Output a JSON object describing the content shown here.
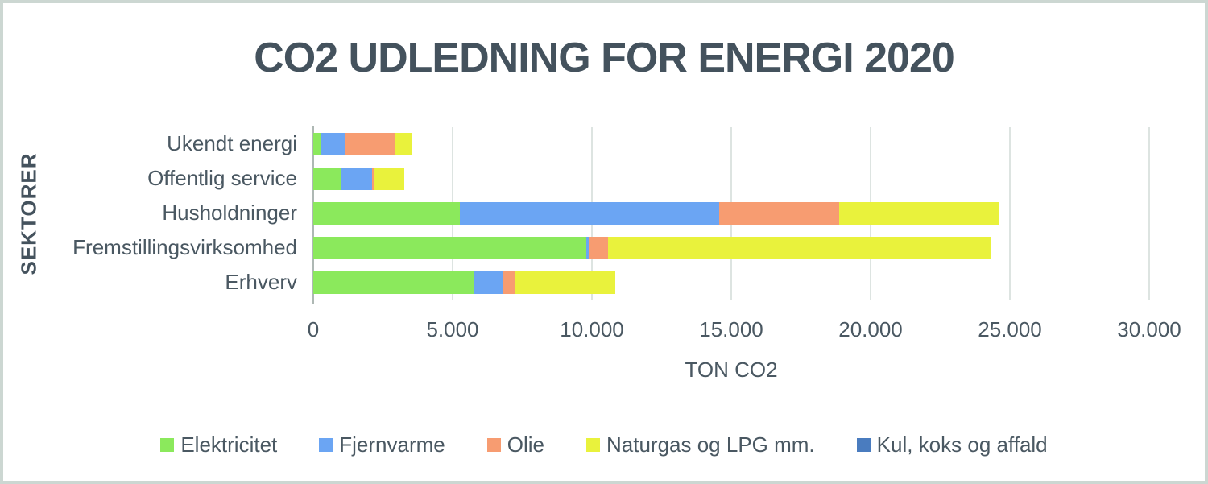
{
  "frame": {
    "background": "#ffffff",
    "border_color": "#ccd7d2"
  },
  "chart_data": {
    "type": "bar",
    "orientation": "horizontal",
    "stacked": true,
    "title": "CO2 UDLEDNING FOR ENERGI 2020",
    "xlabel": "TON CO2",
    "ylabel": "SEKTORER",
    "xlim": [
      0,
      30000
    ],
    "xticks": [
      0,
      5000,
      10000,
      15000,
      20000,
      25000,
      30000
    ],
    "xtick_labels": [
      "0",
      "5.000",
      "10.000",
      "15.000",
      "20.000",
      "25.000",
      "30.000"
    ],
    "grid": "vertical-gridlines-on",
    "legend_position": "bottom",
    "categories": [
      "Ukendt energi",
      "Offentlig service",
      "Husholdninger",
      "Fremstillingsvirksomhed",
      "Erhverv"
    ],
    "series": [
      {
        "name": "Elektricitet",
        "color": "#8be95c",
        "values": [
          300,
          1010,
          5250,
          9800,
          5780
        ]
      },
      {
        "name": "Fjernvarme",
        "color": "#6ba5f3",
        "values": [
          850,
          1090,
          9320,
          80,
          1030
        ]
      },
      {
        "name": "Olie",
        "color": "#f79c71",
        "values": [
          1760,
          95,
          4310,
          700,
          410
        ]
      },
      {
        "name": "Naturgas og LPG mm.",
        "color": "#e9f23c",
        "values": [
          650,
          1080,
          5710,
          13750,
          3620
        ]
      },
      {
        "name": "Kul, koks og affald",
        "color": "#4a7cbf",
        "values": [
          0,
          0,
          0,
          0,
          0
        ]
      }
    ],
    "colors": {
      "title_text": "#44525d",
      "axis_text": "#4a5862",
      "gridline": "#dde4e1",
      "axis_line": "#aeb8b4"
    }
  }
}
